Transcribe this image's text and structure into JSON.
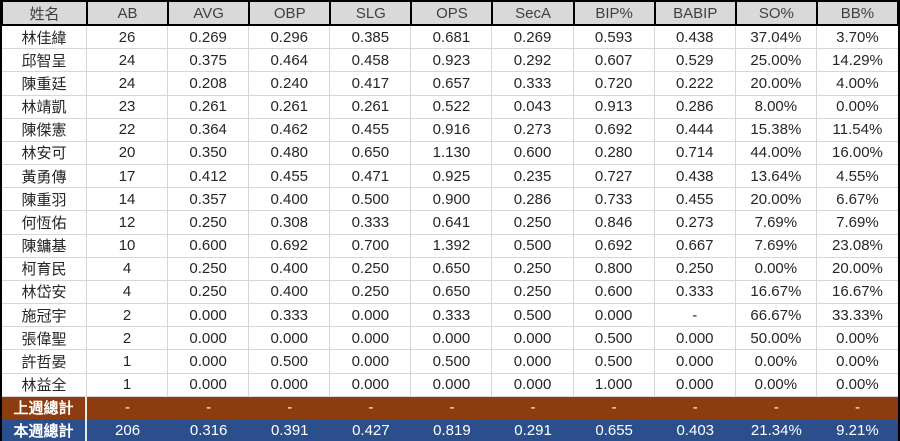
{
  "table": {
    "columns": [
      "姓名",
      "AB",
      "AVG",
      "OBP",
      "SLG",
      "OPS",
      "SecA",
      "BIP%",
      "BABIP",
      "SO%",
      "BB%"
    ],
    "rows": [
      {
        "style": "player",
        "cells": [
          "林佳緯",
          "26",
          "0.269",
          "0.296",
          "0.385",
          "0.681",
          "0.269",
          "0.593",
          "0.438",
          "37.04%",
          "3.70%"
        ]
      },
      {
        "style": "player",
        "cells": [
          "邱智呈",
          "24",
          "0.375",
          "0.464",
          "0.458",
          "0.923",
          "0.292",
          "0.607",
          "0.529",
          "25.00%",
          "14.29%"
        ]
      },
      {
        "style": "player",
        "cells": [
          "陳重廷",
          "24",
          "0.208",
          "0.240",
          "0.417",
          "0.657",
          "0.333",
          "0.720",
          "0.222",
          "20.00%",
          "4.00%"
        ]
      },
      {
        "style": "player",
        "cells": [
          "林靖凱",
          "23",
          "0.261",
          "0.261",
          "0.261",
          "0.522",
          "0.043",
          "0.913",
          "0.286",
          "8.00%",
          "0.00%"
        ]
      },
      {
        "style": "player",
        "cells": [
          "陳傑憲",
          "22",
          "0.364",
          "0.462",
          "0.455",
          "0.916",
          "0.273",
          "0.692",
          "0.444",
          "15.38%",
          "11.54%"
        ]
      },
      {
        "style": "player",
        "cells": [
          "林安可",
          "20",
          "0.350",
          "0.480",
          "0.650",
          "1.130",
          "0.600",
          "0.280",
          "0.714",
          "44.00%",
          "16.00%"
        ]
      },
      {
        "style": "player",
        "cells": [
          "黃勇傳",
          "17",
          "0.412",
          "0.455",
          "0.471",
          "0.925",
          "0.235",
          "0.727",
          "0.438",
          "13.64%",
          "4.55%"
        ]
      },
      {
        "style": "player",
        "cells": [
          "陳重羽",
          "14",
          "0.357",
          "0.400",
          "0.500",
          "0.900",
          "0.286",
          "0.733",
          "0.455",
          "20.00%",
          "6.67%"
        ]
      },
      {
        "style": "player",
        "cells": [
          "何恆佑",
          "12",
          "0.250",
          "0.308",
          "0.333",
          "0.641",
          "0.250",
          "0.846",
          "0.273",
          "7.69%",
          "7.69%"
        ]
      },
      {
        "style": "player",
        "cells": [
          "陳鏞基",
          "10",
          "0.600",
          "0.692",
          "0.700",
          "1.392",
          "0.500",
          "0.692",
          "0.667",
          "7.69%",
          "23.08%"
        ]
      },
      {
        "style": "player",
        "cells": [
          "柯育民",
          "4",
          "0.250",
          "0.400",
          "0.250",
          "0.650",
          "0.250",
          "0.800",
          "0.250",
          "0.00%",
          "20.00%"
        ]
      },
      {
        "style": "player",
        "cells": [
          "林岱安",
          "4",
          "0.250",
          "0.400",
          "0.250",
          "0.650",
          "0.250",
          "0.600",
          "0.333",
          "16.67%",
          "16.67%"
        ]
      },
      {
        "style": "player",
        "cells": [
          "施冠宇",
          "2",
          "0.000",
          "0.333",
          "0.000",
          "0.333",
          "0.500",
          "0.000",
          "-",
          "66.67%",
          "33.33%"
        ]
      },
      {
        "style": "player",
        "cells": [
          "張偉聖",
          "2",
          "0.000",
          "0.000",
          "0.000",
          "0.000",
          "0.000",
          "0.500",
          "0.000",
          "50.00%",
          "0.00%"
        ]
      },
      {
        "style": "player",
        "cells": [
          "許哲晏",
          "1",
          "0.000",
          "0.500",
          "0.000",
          "0.500",
          "0.000",
          "0.500",
          "0.000",
          "0.00%",
          "0.00%"
        ]
      },
      {
        "style": "player",
        "cells": [
          "林益全",
          "1",
          "0.000",
          "0.000",
          "0.000",
          "0.000",
          "0.000",
          "1.000",
          "0.000",
          "0.00%",
          "0.00%"
        ]
      },
      {
        "style": "last-week",
        "cells": [
          "上週總計",
          "-",
          "-",
          "-",
          "-",
          "-",
          "-",
          "-",
          "-",
          "-",
          "-"
        ]
      },
      {
        "style": "this-week",
        "cells": [
          "本週總計",
          "206",
          "0.316",
          "0.391",
          "0.427",
          "0.819",
          "0.291",
          "0.655",
          "0.403",
          "21.34%",
          "9.21%"
        ]
      }
    ]
  },
  "colors": {
    "edge": "#000000",
    "header_cell": "#D9D9D9",
    "header_text": "#3F3F3F",
    "grid": "#D6D6D6",
    "last_week_bg": "#8C3C0F",
    "this_week_bg": "#2B4E8C"
  }
}
